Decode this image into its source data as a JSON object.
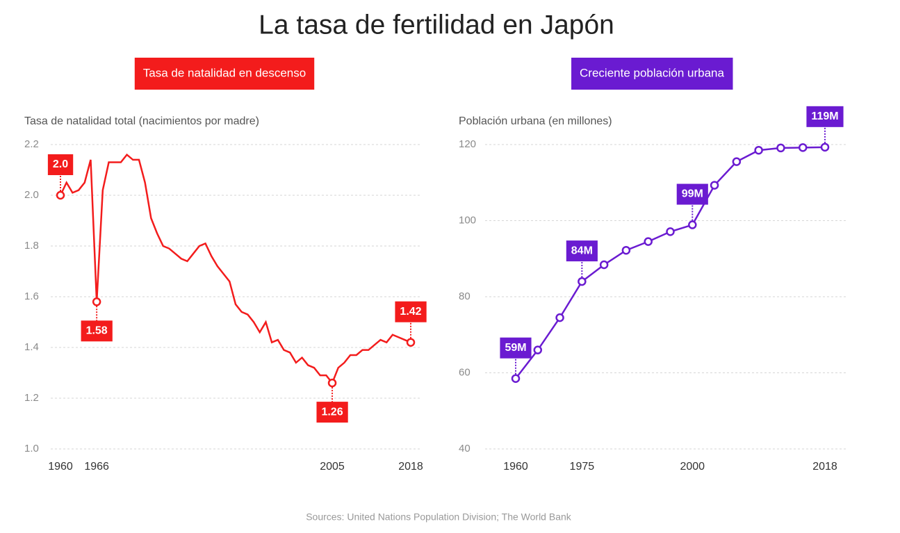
{
  "title": "La tasa de fertilidad en Japón",
  "source": "Sources: United Nations Population Division; The World Bank",
  "chart_data": [
    {
      "type": "line",
      "subtitle": "Tasa de natalidad en descenso",
      "ylabel": "Tasa de natalidad total (nacimientos por madre)",
      "color": "#f31c1c",
      "x": [
        1960,
        1961,
        1962,
        1963,
        1964,
        1965,
        1966,
        1967,
        1968,
        1969,
        1970,
        1971,
        1972,
        1973,
        1974,
        1975,
        1976,
        1977,
        1978,
        1979,
        1980,
        1981,
        1982,
        1983,
        1984,
        1985,
        1986,
        1987,
        1988,
        1989,
        1990,
        1991,
        1992,
        1993,
        1994,
        1995,
        1996,
        1997,
        1998,
        1999,
        2000,
        2001,
        2002,
        2003,
        2004,
        2005,
        2006,
        2007,
        2008,
        2009,
        2010,
        2011,
        2012,
        2013,
        2014,
        2015,
        2016,
        2017,
        2018
      ],
      "values": [
        2.0,
        2.05,
        2.01,
        2.02,
        2.05,
        2.14,
        1.58,
        2.02,
        2.13,
        2.13,
        2.13,
        2.16,
        2.14,
        2.14,
        2.05,
        1.91,
        1.85,
        1.8,
        1.79,
        1.77,
        1.75,
        1.74,
        1.77,
        1.8,
        1.81,
        1.76,
        1.72,
        1.69,
        1.66,
        1.57,
        1.54,
        1.53,
        1.5,
        1.46,
        1.5,
        1.42,
        1.43,
        1.39,
        1.38,
        1.34,
        1.36,
        1.33,
        1.32,
        1.29,
        1.29,
        1.26,
        1.32,
        1.34,
        1.37,
        1.37,
        1.39,
        1.39,
        1.41,
        1.43,
        1.42,
        1.45,
        1.44,
        1.43,
        1.42
      ],
      "value_labels": [
        "2.0",
        null,
        null,
        null,
        null,
        null,
        "1.58",
        null,
        null,
        null,
        null,
        null,
        null,
        null,
        null,
        null,
        null,
        null,
        null,
        null,
        null,
        null,
        null,
        null,
        null,
        null,
        null,
        null,
        null,
        null,
        null,
        null,
        null,
        null,
        null,
        null,
        null,
        null,
        null,
        null,
        null,
        null,
        null,
        null,
        null,
        "1.26",
        null,
        null,
        null,
        null,
        null,
        null,
        null,
        null,
        null,
        null,
        null,
        null,
        "1.42"
      ],
      "xlim": [
        1960,
        2018
      ],
      "xticks": [
        1960,
        1966,
        2005,
        2018
      ],
      "ylim": [
        {
          "value": 1,
          "label": "1.0"
        },
        2.2
      ],
      "yticks": [
        {
          "value": 1,
          "label": "1.0"
        },
        1.2,
        1.4,
        1.6,
        1.8,
        {
          "value": 2,
          "label": "2.0"
        },
        2.2
      ],
      "grid": true
    },
    {
      "type": "line",
      "subtitle": "Creciente población urbana",
      "ylabel": "Población urbana (en millones)",
      "color": "#6a1bd1",
      "categories": [
        "1960",
        null,
        null,
        "1975",
        null,
        null,
        null,
        null,
        "2000",
        null,
        null,
        null,
        null,
        null,
        "2018"
      ],
      "values": [
        58.5,
        66,
        74.5,
        84,
        88.4,
        92.2,
        94.5,
        97.1,
        98.9,
        109.3,
        115.5,
        118.5,
        119.1,
        119.2,
        119.3
      ],
      "value_labels": [
        "59M",
        null,
        null,
        "84M",
        null,
        null,
        null,
        null,
        "99M",
        null,
        null,
        null,
        null,
        null,
        "119M"
      ],
      "ylim": [
        40,
        120
      ],
      "yticks": [
        40,
        60,
        80,
        100,
        120
      ],
      "grid": true
    }
  ]
}
